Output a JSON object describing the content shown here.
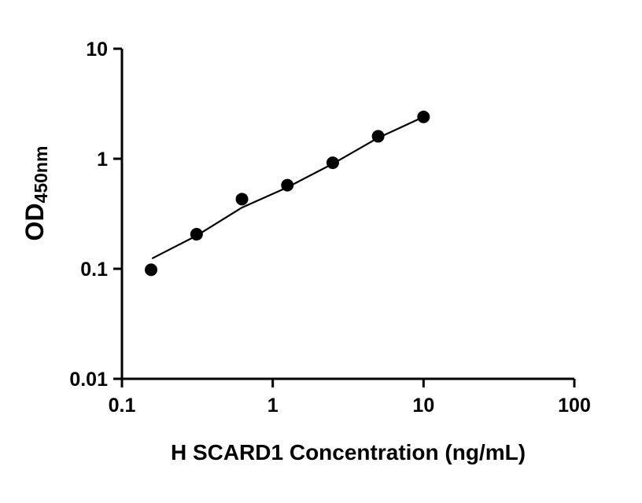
{
  "chart_data": {
    "type": "scatter",
    "title": "",
    "xlabel": "H SCARD1 Concentration (ng/mL)",
    "ylabel_main": "OD",
    "ylabel_sub": "450nm",
    "x_scale": "log",
    "y_scale": "log",
    "xlim": [
      0.1,
      100
    ],
    "ylim": [
      0.01,
      10
    ],
    "grid": false,
    "legend": "none",
    "point_color": "#000000",
    "line_color": "#000000",
    "axis_color": "#000000",
    "x_ticks": [
      {
        "value": 0.1,
        "label": "0.1"
      },
      {
        "value": 1,
        "label": "1"
      },
      {
        "value": 10,
        "label": "10"
      },
      {
        "value": 100,
        "label": "100"
      }
    ],
    "y_ticks": [
      {
        "value": 10,
        "label": "10"
      },
      {
        "value": 1,
        "label": "1"
      },
      {
        "value": 0.1,
        "label": "0.1"
      },
      {
        "value": 0.01,
        "label": "0.01"
      }
    ],
    "points": {
      "x": [
        0.156,
        0.3125,
        0.625,
        1.25,
        2.5,
        5,
        10
      ],
      "y": [
        0.098,
        0.206,
        0.43,
        0.575,
        0.92,
        1.6,
        2.4
      ]
    },
    "trend_line": {
      "x": [
        0.16,
        0.3125,
        0.625,
        1.25,
        2.5,
        5,
        10
      ],
      "y": [
        0.125,
        0.2,
        0.36,
        0.55,
        0.9,
        1.55,
        2.4
      ]
    }
  }
}
